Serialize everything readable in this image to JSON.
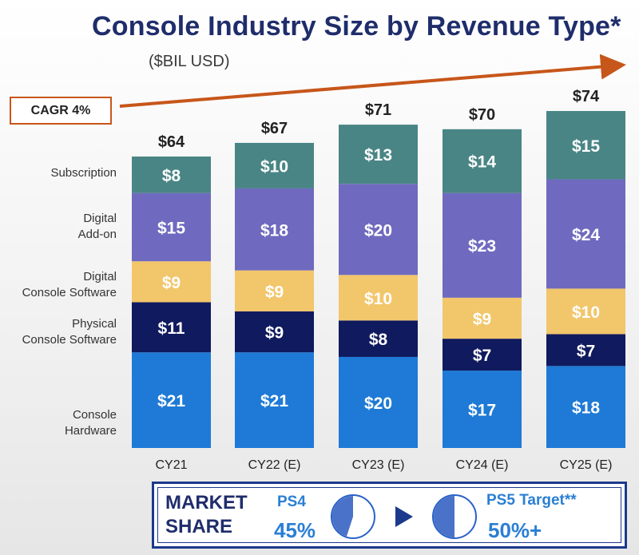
{
  "title": "Console Industry Size by Revenue Type*",
  "subtitle": "($BIL USD)",
  "cagr_label": "CAGR 4%",
  "row_labels": [
    "Subscription",
    "Digital\nAdd-on",
    "Digital\nConsole Software",
    "Physical\nConsole Software",
    "Console\nHardware"
  ],
  "colors": {
    "title": "#1f2d6b",
    "arrow": "#c7561a",
    "subscription": "#4a8585",
    "digital_addon": "#6f6abf",
    "digital_software": "#f2c66b",
    "physical_software": "#101a5e",
    "hardware": "#1e7ad6",
    "market_text": "#2a7fd4"
  },
  "chart_data": {
    "type": "bar",
    "stacked": true,
    "categories": [
      "CY21",
      "CY22 (E)",
      "CY23 (E)",
      "CY24 (E)",
      "CY25 (E)"
    ],
    "totals": [
      "$64",
      "$67",
      "$71",
      "$70",
      "$74"
    ],
    "total_values": [
      64,
      67,
      71,
      70,
      74
    ],
    "series": [
      {
        "name": "Console Hardware",
        "values": [
          21,
          21,
          20,
          17,
          18
        ],
        "labels": [
          "$21",
          "$21",
          "$20",
          "$17",
          "$18"
        ],
        "color": "#1e7ad6",
        "text_color": "#ffffff"
      },
      {
        "name": "Physical Console Software",
        "values": [
          11,
          9,
          8,
          7,
          7
        ],
        "labels": [
          "$11",
          "$9",
          "$8",
          "$7",
          "$7"
        ],
        "color": "#101a5e",
        "text_color": "#ffffff"
      },
      {
        "name": "Digital Console Software",
        "values": [
          9,
          9,
          10,
          9,
          10
        ],
        "labels": [
          "$9",
          "$9",
          "$10",
          "$9",
          "$10"
        ],
        "color": "#f2c66b",
        "text_color": "#ffffff"
      },
      {
        "name": "Digital Add-on",
        "values": [
          15,
          18,
          20,
          23,
          24
        ],
        "labels": [
          "$15",
          "$18",
          "$20",
          "$23",
          "$24"
        ],
        "color": "#6f6abf",
        "text_color": "#ffffff"
      },
      {
        "name": "Subscription",
        "values": [
          8,
          10,
          13,
          14,
          15
        ],
        "labels": [
          "$8",
          "$10",
          "$13",
          "$14",
          "$15"
        ],
        "color": "#4a8585",
        "text_color": "#ffffff"
      }
    ],
    "ylim": [
      0,
      74
    ]
  },
  "market_share": {
    "title_line1": "MARKET",
    "title_line2": "SHARE",
    "ps4": {
      "name": "PS4",
      "value": "45%",
      "fraction": 0.45
    },
    "ps5": {
      "name": "PS5 Target**",
      "value": "50%+",
      "fraction": 0.5
    }
  }
}
